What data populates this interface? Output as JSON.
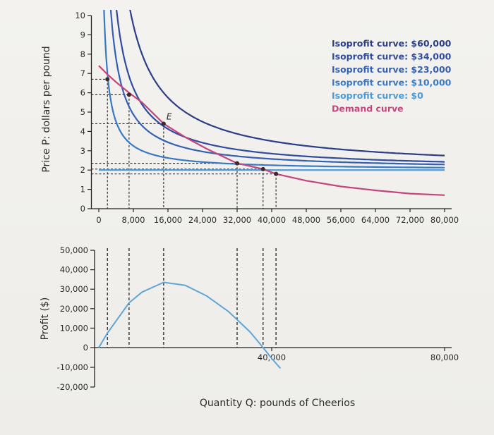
{
  "chart_data": [
    {
      "type": "line",
      "ylabel": "Price P: dollars per pound",
      "xlim": [
        0,
        80000
      ],
      "ylim": [
        0,
        10
      ],
      "x_ticks": [
        "0",
        "8,000",
        "16,000",
        "24,000",
        "32,000",
        "40,000",
        "48,000",
        "56,000",
        "64,000",
        "72,000",
        "80,000"
      ],
      "x_tick_values": [
        0,
        8000,
        16000,
        24000,
        32000,
        40000,
        48000,
        56000,
        64000,
        72000,
        80000
      ],
      "y_ticks": [
        "0",
        "1",
        "2",
        "3",
        "4",
        "5",
        "6",
        "7",
        "8",
        "9",
        "10"
      ],
      "y_tick_values": [
        0,
        1,
        2,
        3,
        4,
        5,
        6,
        7,
        8,
        9,
        10
      ],
      "average_cost": 2,
      "legend_position": "top-right",
      "series": [
        {
          "name": "Isoprofit curve: $60,000",
          "profit": 60000,
          "color": "#2c3f86"
        },
        {
          "name": "Isoprofit curve: $34,000",
          "profit": 34000,
          "color": "#2f4c9e"
        },
        {
          "name": "Isoprofit curve: $23,000",
          "profit": 23000,
          "color": "#3460b4"
        },
        {
          "name": "Isoprofit curve: $10,000",
          "profit": 10000,
          "color": "#3979c4"
        },
        {
          "name": "Isoprofit curve: $0",
          "profit": 0,
          "color": "#4b9ad6"
        },
        {
          "name": "Demand curve",
          "color": "#c4457e",
          "x": [
            0,
            2000,
            4000,
            7000,
            10000,
            15000,
            20000,
            25000,
            32000,
            38000,
            41000,
            48000,
            56000,
            64000,
            72000,
            80000
          ],
          "y": [
            7.4,
            6.95,
            6.55,
            6.0,
            5.5,
            4.4,
            3.7,
            3.1,
            2.35,
            2.05,
            1.8,
            1.45,
            1.15,
            0.95,
            0.78,
            0.7
          ]
        }
      ],
      "points": [
        {
          "label": "",
          "x": 2000,
          "y": 6.7
        },
        {
          "label": "",
          "x": 7000,
          "y": 5.9
        },
        {
          "label": "E",
          "x": 15000,
          "y": 4.4
        },
        {
          "label": "",
          "x": 32000,
          "y": 2.35
        },
        {
          "label": "",
          "x": 38000,
          "y": 2.05
        },
        {
          "label": "",
          "x": 41000,
          "y": 1.8
        }
      ]
    },
    {
      "type": "line",
      "xlabel": "Quantity Q: pounds of Cheerios",
      "ylabel": "Profit ($)",
      "xlim": [
        0,
        80000
      ],
      "ylim": [
        -20000,
        50000
      ],
      "x_ticks": [
        "40,000",
        "80,000"
      ],
      "x_tick_values": [
        40000,
        80000
      ],
      "y_ticks": [
        "50,000",
        "40,000",
        "30,000",
        "20,000",
        "10,000",
        "0",
        "-10,000",
        "-20,000"
      ],
      "y_tick_values": [
        50000,
        40000,
        30000,
        20000,
        10000,
        0,
        -10000,
        -20000
      ],
      "series": [
        {
          "color": "#5fa5d6",
          "x": [
            0,
            2000,
            7000,
            10000,
            15000,
            20000,
            25000,
            30000,
            35000,
            38000,
            40000,
            42000
          ],
          "y": [
            0,
            7500,
            23000,
            28500,
            33500,
            32000,
            26500,
            18500,
            8000,
            0,
            -5500,
            -10500
          ]
        }
      ],
      "drop_lines_x": [
        2000,
        7000,
        15000,
        32000,
        38000,
        41000
      ]
    }
  ]
}
